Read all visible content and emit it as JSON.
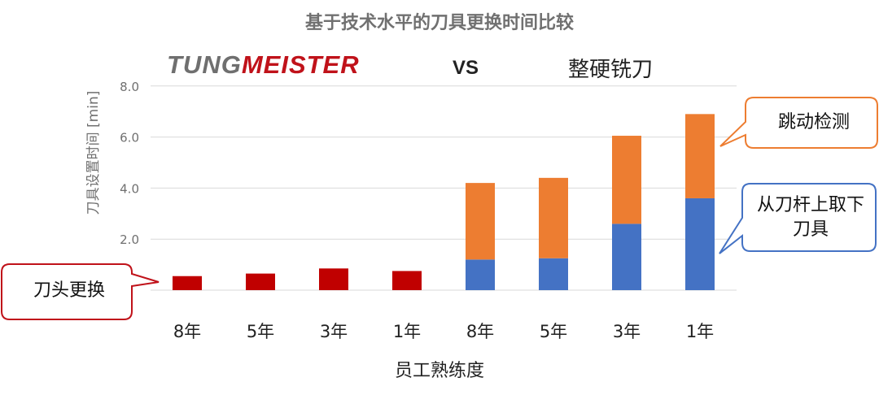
{
  "title": "基于技术水平的刀具更换时间比较",
  "header": {
    "brand_logo_parts": [
      "TUNG",
      "MEISTER"
    ],
    "vs": "VS",
    "competitor": "整硬铣刀"
  },
  "callouts": {
    "tool_head": "刀头更换",
    "runout": "跳动检测",
    "remove": "从刀杆上取下刀具"
  },
  "colors": {
    "tungmeister": "#c00000",
    "removal": "#4472c4",
    "runout": "#ed7d31",
    "callout_red": "#c0121a",
    "callout_orange": "#ed7d31",
    "callout_blue": "#4472c4"
  },
  "chart_data": {
    "type": "bar",
    "stacked": true,
    "title": "基于技术水平的刀具更换时间比较",
    "xlabel": "员工熟练度",
    "ylabel": "刀具设置时间 [min]",
    "ylim": [
      0,
      8
    ],
    "yticks": [
      "8.0",
      "6.0",
      "4.0",
      "2.0"
    ],
    "grid": true,
    "categories": [
      "8年",
      "5年",
      "3年",
      "1年",
      "8年",
      "5年",
      "3年",
      "1年"
    ],
    "series": [
      {
        "name": "刀头更换",
        "values": [
          0.55,
          0.65,
          0.85,
          0.75,
          0,
          0,
          0,
          0
        ]
      },
      {
        "name": "从刀杆上取下刀具",
        "values": [
          0,
          0,
          0,
          0,
          1.2,
          1.25,
          2.6,
          3.6
        ]
      },
      {
        "name": "跳动检测",
        "values": [
          0,
          0,
          0,
          0,
          3.0,
          3.15,
          3.45,
          3.3
        ]
      }
    ]
  }
}
